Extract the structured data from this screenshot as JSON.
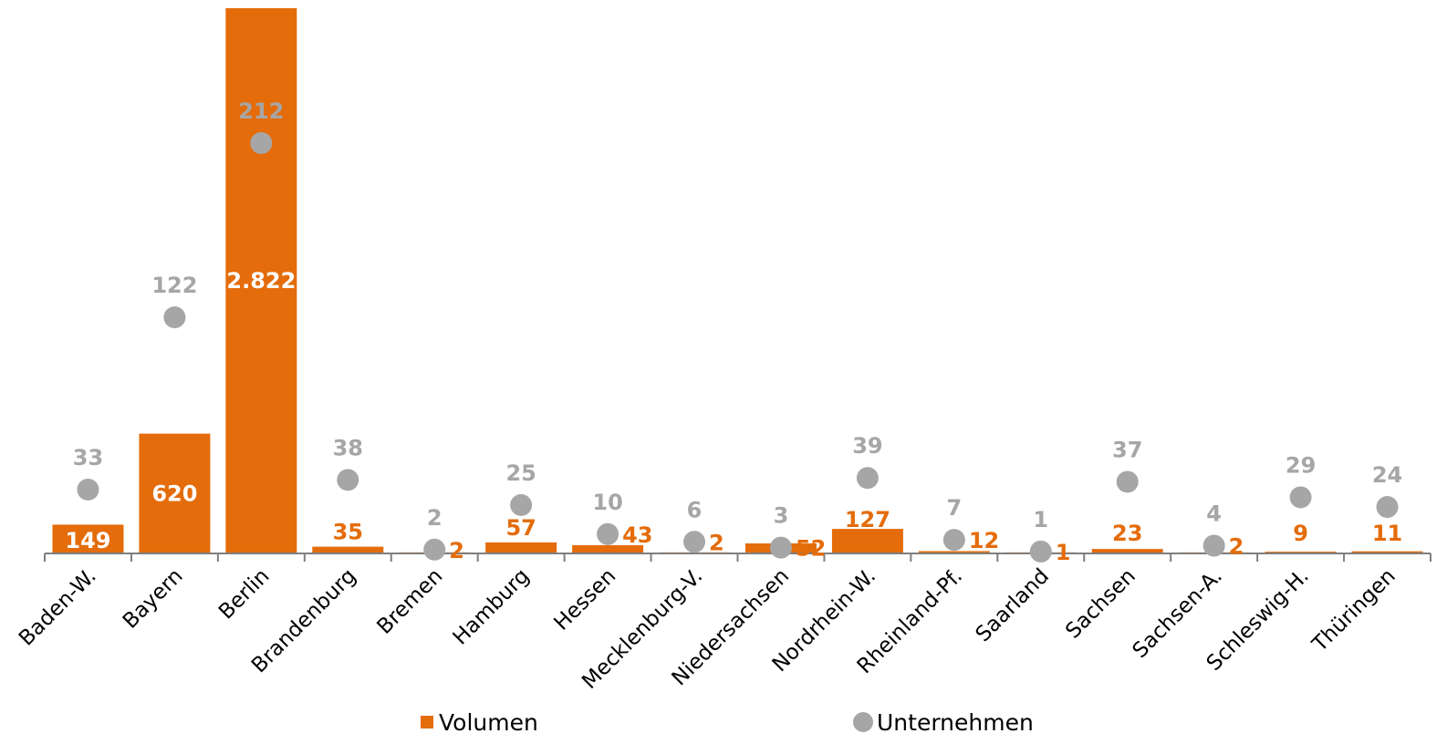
{
  "chart_data": {
    "type": "bar",
    "categories": [
      "Baden-W.",
      "Bayern",
      "Berlin",
      "Brandenburg",
      "Bremen",
      "Hamburg",
      "Hessen",
      "Mecklenburg-V.",
      "Niedersachsen",
      "Nordrhein-W.",
      "Rheinland-Pf.",
      "Saarland",
      "Sachsen",
      "Sachsen-A.",
      "Schleswig-H.",
      "Thüringen"
    ],
    "series": [
      {
        "name": "Volumen",
        "kind": "bar",
        "color": "#E46C0A",
        "values": [
          149,
          620,
          2822,
          35,
          2,
          57,
          43,
          2,
          52,
          127,
          12,
          1,
          23,
          2,
          9,
          11
        ],
        "labels": [
          "149",
          "620",
          "2.822",
          "35",
          "2",
          "57",
          "43",
          "2",
          "52",
          "127",
          "12",
          "1",
          "23",
          "2",
          "9",
          "11"
        ]
      },
      {
        "name": "Unternehmen",
        "kind": "dot",
        "color": "#A6A6A6",
        "values": [
          33,
          122,
          212,
          38,
          2,
          25,
          10,
          6,
          3,
          39,
          7,
          1,
          37,
          4,
          29,
          24
        ],
        "labels": [
          "33",
          "122",
          "212",
          "38",
          "2",
          "25",
          "10",
          "6",
          "3",
          "39",
          "7",
          "1",
          "37",
          "4",
          "29",
          "24"
        ]
      }
    ],
    "legend_position": "bottom",
    "grid": false
  }
}
